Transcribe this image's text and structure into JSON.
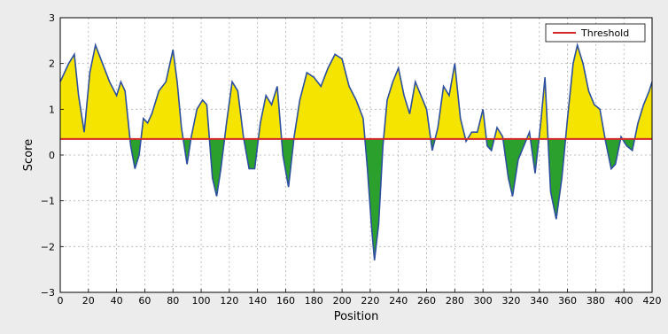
{
  "chart_data": {
    "type": "area",
    "title": "",
    "xlabel": "Position",
    "ylabel": "Score",
    "xlim": [
      0,
      420
    ],
    "ylim": [
      -3,
      3
    ],
    "xticks": [
      0,
      20,
      40,
      60,
      80,
      100,
      120,
      140,
      160,
      180,
      200,
      220,
      240,
      260,
      280,
      300,
      320,
      340,
      360,
      380,
      400,
      420
    ],
    "yticks": [
      -3,
      -2,
      -1,
      0,
      1,
      2,
      3
    ],
    "ytick_labels": [
      "−3",
      "−2",
      "−1",
      "0",
      "1",
      "2",
      "3"
    ],
    "grid": true,
    "legend": {
      "position": "top-right",
      "entries": [
        "Threshold"
      ]
    },
    "threshold": 0.35,
    "colors": {
      "line": "#2c4f9e",
      "above_fill": "#f5e400",
      "below_fill": "#2ca02c",
      "threshold": "#d62728",
      "plot_bg": "#ffffff",
      "page_bg": "#ececec"
    },
    "series": [
      {
        "name": "Score",
        "x": [
          0,
          3,
          6,
          10,
          13,
          17,
          21,
          25,
          30,
          35,
          40,
          43,
          46,
          50,
          53,
          56,
          59,
          62,
          65,
          70,
          75,
          80,
          83,
          86,
          90,
          93,
          97,
          101,
          104,
          108,
          111,
          114,
          118,
          122,
          126,
          130,
          134,
          138,
          142,
          146,
          150,
          154,
          158,
          162,
          166,
          170,
          175,
          180,
          185,
          190,
          195,
          200,
          205,
          210,
          215,
          218,
          221,
          223,
          226,
          229,
          232,
          236,
          240,
          244,
          248,
          252,
          256,
          260,
          264,
          268,
          272,
          276,
          280,
          284,
          288,
          292,
          296,
          300,
          303,
          306,
          310,
          314,
          318,
          321,
          325,
          329,
          333,
          337,
          341,
          344,
          348,
          352,
          356,
          360,
          364,
          367,
          371,
          375,
          379,
          383,
          387,
          391,
          394,
          398,
          402,
          406,
          410,
          414,
          418,
          420
        ],
        "y": [
          1.6,
          1.8,
          2.0,
          2.2,
          1.3,
          0.5,
          1.8,
          2.4,
          2.0,
          1.6,
          1.3,
          1.6,
          1.4,
          0.2,
          -0.3,
          0.0,
          0.8,
          0.7,
          0.9,
          1.4,
          1.6,
          2.3,
          1.6,
          0.6,
          -0.2,
          0.4,
          1.0,
          1.2,
          1.1,
          -0.5,
          -0.9,
          -0.3,
          0.7,
          1.6,
          1.4,
          0.4,
          -0.3,
          -0.3,
          0.7,
          1.3,
          1.1,
          1.5,
          0.0,
          -0.7,
          0.4,
          1.2,
          1.8,
          1.7,
          1.5,
          1.9,
          2.2,
          2.1,
          1.5,
          1.2,
          0.8,
          -0.3,
          -1.6,
          -2.3,
          -1.5,
          0.2,
          1.2,
          1.6,
          1.9,
          1.3,
          0.9,
          1.6,
          1.3,
          1.0,
          0.1,
          0.6,
          1.5,
          1.3,
          2.0,
          0.8,
          0.3,
          0.5,
          0.5,
          1.0,
          0.2,
          0.1,
          0.6,
          0.4,
          -0.5,
          -0.9,
          -0.1,
          0.2,
          0.5,
          -0.4,
          0.7,
          1.7,
          -0.8,
          -1.4,
          -0.5,
          0.8,
          2.0,
          2.4,
          2.0,
          1.4,
          1.1,
          1.0,
          0.3,
          -0.3,
          -0.2,
          0.4,
          0.2,
          0.1,
          0.7,
          1.1,
          1.4,
          1.6
        ]
      },
      {
        "name": "Threshold",
        "y_const": 0.35
      }
    ]
  }
}
